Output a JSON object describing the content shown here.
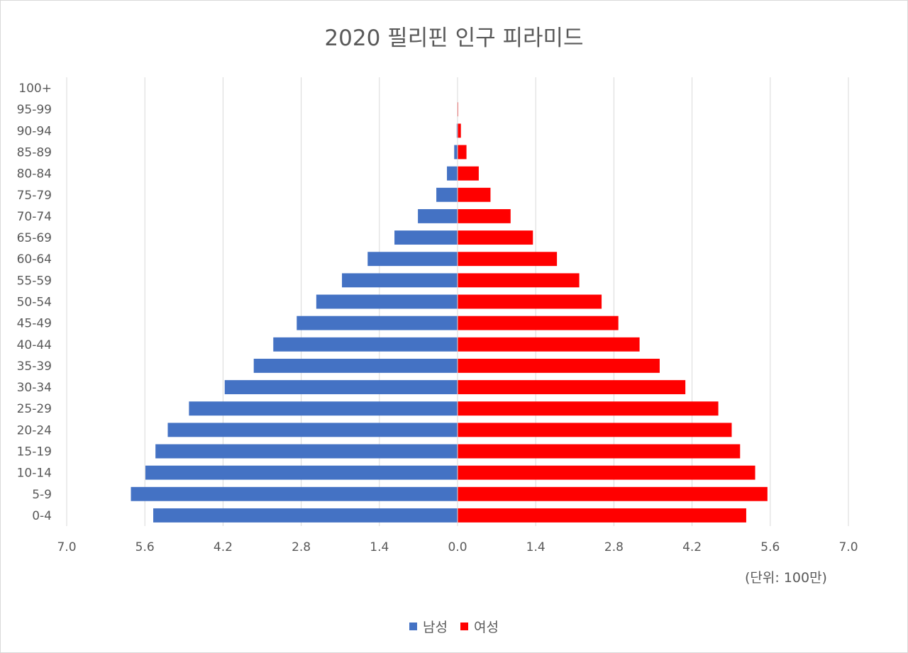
{
  "chart_data": {
    "type": "bar",
    "orientation": "horizontal",
    "title": "2020 필리핀 인구 피라미드",
    "unit_label": "(단위: 100만)",
    "categories": [
      "0-4",
      "5-9",
      "10-14",
      "15-19",
      "20-24",
      "25-29",
      "30-34",
      "35-39",
      "40-44",
      "45-49",
      "50-54",
      "55-59",
      "60-64",
      "65-69",
      "70-74",
      "75-79",
      "80-84",
      "85-89",
      "90-94",
      "95-99",
      "100+"
    ],
    "series": [
      {
        "name": "남성",
        "color": "#4472c4",
        "side": "left",
        "values": [
          5.45,
          5.85,
          5.59,
          5.41,
          5.19,
          4.81,
          4.17,
          3.65,
          3.3,
          2.88,
          2.53,
          2.07,
          1.61,
          1.13,
          0.71,
          0.38,
          0.19,
          0.06,
          0.015,
          0.004,
          0.001
        ]
      },
      {
        "name": "여성",
        "color": "#ff0000",
        "side": "right",
        "values": [
          5.17,
          5.55,
          5.33,
          5.06,
          4.91,
          4.67,
          4.08,
          3.62,
          3.26,
          2.88,
          2.58,
          2.18,
          1.78,
          1.35,
          0.95,
          0.59,
          0.38,
          0.16,
          0.06,
          0.012,
          0.002
        ]
      }
    ],
    "x_ticks": [
      "7.0",
      "5.6",
      "4.2",
      "2.8",
      "1.4",
      "0.0",
      "1.4",
      "2.8",
      "4.2",
      "5.6",
      "7.0"
    ],
    "xlim": [
      -7.0,
      7.0
    ],
    "grid": true,
    "legend": "bottom"
  }
}
